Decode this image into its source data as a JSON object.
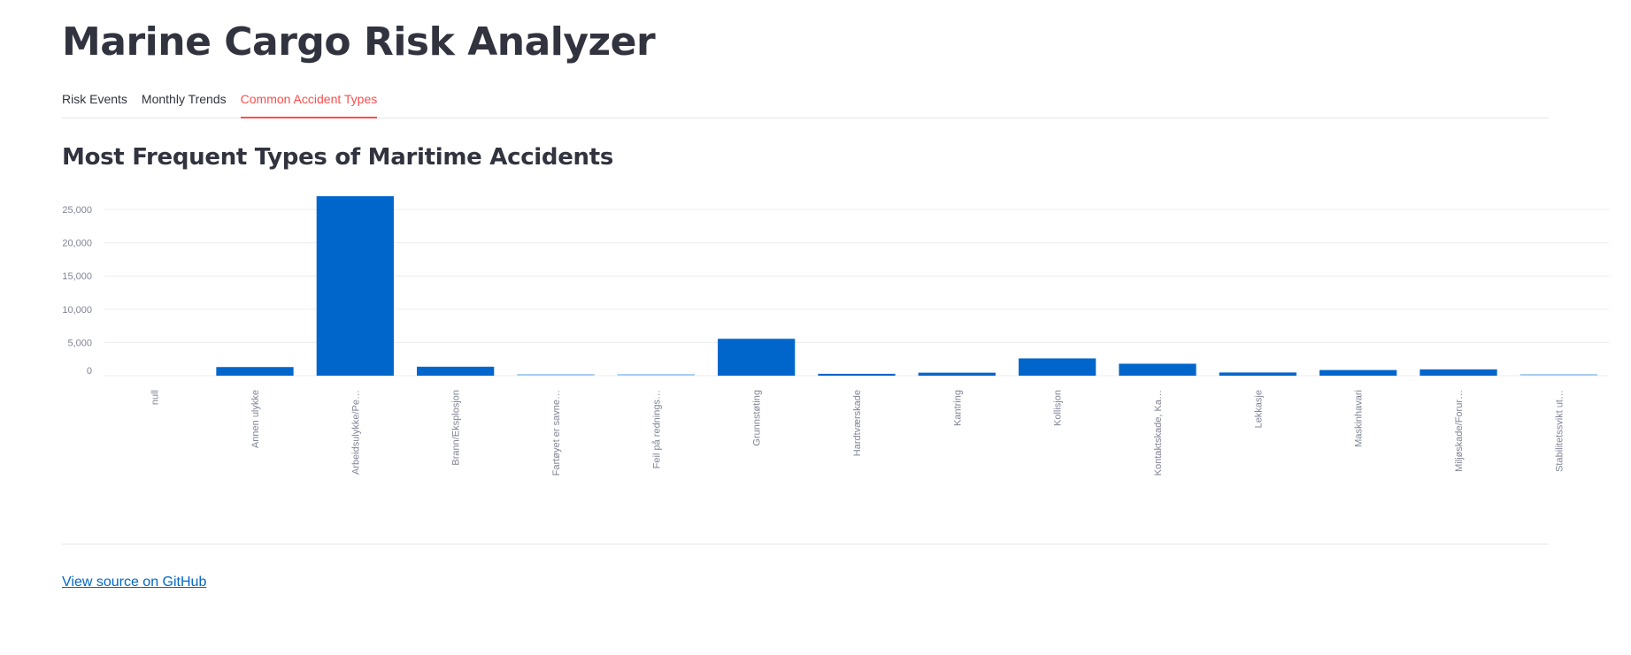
{
  "app": {
    "title": "Marine Cargo Risk Analyzer"
  },
  "tabs": [
    {
      "label": "Risk Events",
      "active": false
    },
    {
      "label": "Monthly Trends",
      "active": false
    },
    {
      "label": "Common Accident Types",
      "active": true
    }
  ],
  "section": {
    "title": "Most Frequent Types of Maritime Accidents"
  },
  "footer": {
    "link_label": "View source on GitHub"
  },
  "colors": {
    "bar": "#0066cc",
    "bar_light": "#a9cdf0",
    "accent": "#ff4b4b",
    "grid": "#ececf0",
    "axis_text": "#808495"
  },
  "chart_data": {
    "type": "bar",
    "categories": [
      "null",
      "Annen ulykke",
      "Arbeidsulykke/Pe…",
      "Brann/Eksplosjon",
      "Fartøyet er savne…",
      "Feil på rednings…",
      "Grunnstøting",
      "Hardtværskade",
      "Kantring",
      "Kollisjon",
      "Kontaktskade, Ka…",
      "Lekkasje",
      "Maskinhavari",
      "Miljøskade/Forur…",
      "Stabilitetssvikt ut…"
    ],
    "values": [
      0,
      1300,
      27000,
      1350,
      60,
      50,
      5550,
      280,
      450,
      2600,
      1800,
      480,
      850,
      950,
      90
    ],
    "yticks": [
      0,
      5000,
      10000,
      15000,
      20000,
      25000
    ],
    "ytick_labels": [
      "0",
      "5,000",
      "10,000",
      "15,000",
      "20,000",
      "25,000"
    ],
    "ylim": [
      0,
      27000
    ],
    "grid": true
  }
}
